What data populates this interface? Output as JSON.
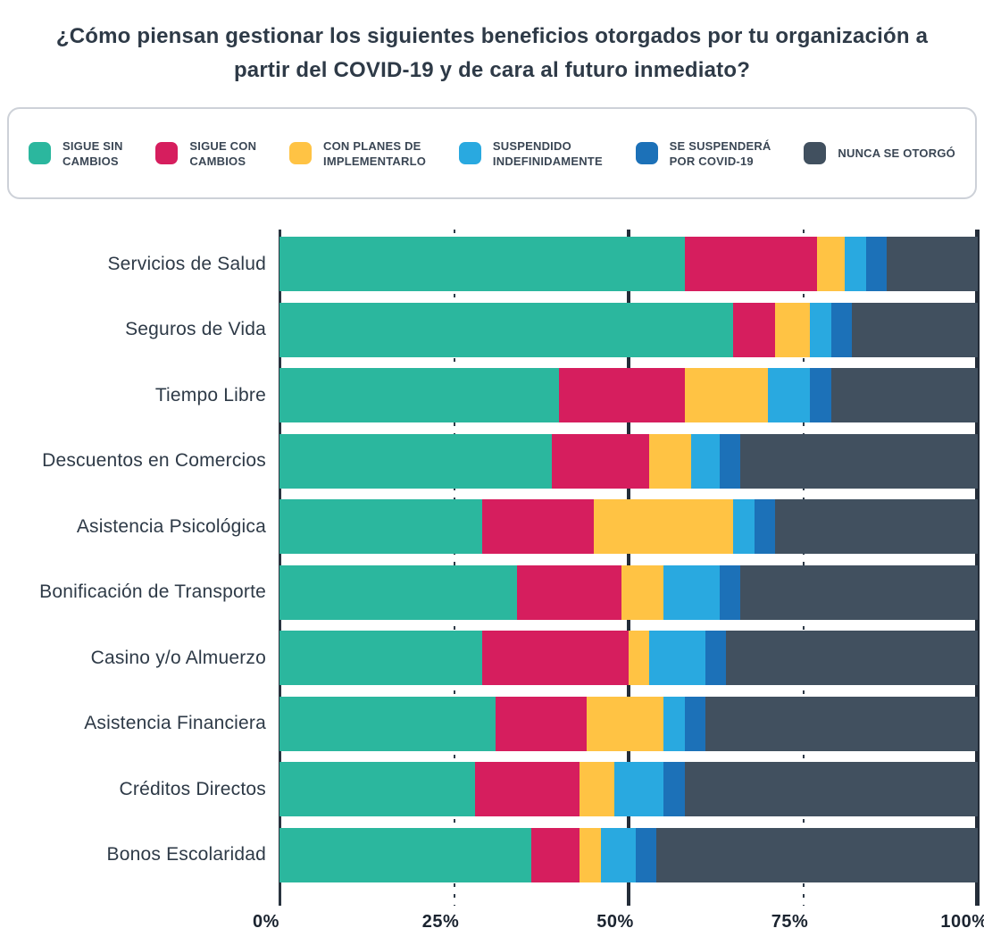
{
  "title": "¿Cómo piensan gestionar los siguientes beneficios otorgados por tu organización a partir del COVID-19 y de cara al futuro inmediato?",
  "colors": {
    "teal": "#2BB79E",
    "pink": "#D61E5E",
    "yellow": "#FFC344",
    "light_blue": "#29A9E0",
    "dark_blue": "#1C71B8",
    "slate": "#41505F",
    "text_dark": "#2E3A47"
  },
  "legend": {
    "items": [
      {
        "label": "SIGUE SIN\nCAMBIOS",
        "color": "#2BB79E"
      },
      {
        "label": "SIGUE CON\nCAMBIOS",
        "color": "#D61E5E"
      },
      {
        "label": "CON PLANES DE\nIMPLEMENTARLO",
        "color": "#FFC344"
      },
      {
        "label": "SUSPENDIDO\nINDEFINIDAMENTE",
        "color": "#29A9E0"
      },
      {
        "label": "SE SUSPENDERÁ\nPOR COVID-19",
        "color": "#1C71B8"
      },
      {
        "label": "NUNCA SE OTORGÓ",
        "color": "#41505F"
      }
    ]
  },
  "chart_data": {
    "type": "bar",
    "stacked": true,
    "orientation": "horizontal",
    "unit": "percent",
    "title": "¿Cómo piensan gestionar los siguientes beneficios otorgados por tu organización a partir del COVID-19 y de cara al futuro inmediato?",
    "categories": [
      "Servicios de Salud",
      "Seguros de Vida",
      "Tiempo Libre",
      "Descuentos en Comercios",
      "Asistencia Psicológica",
      "Bonificación de Transporte",
      "Casino y/o Almuerzo",
      "Asistencia Financiera",
      "Créditos Directos",
      "Bonos Escolaridad"
    ],
    "series": [
      {
        "name": "Sigue sin cambios",
        "color": "#2BB79E",
        "values": [
          58,
          65,
          40,
          39,
          29,
          34,
          29,
          31,
          28,
          36
        ]
      },
      {
        "name": "Sigue con cambios",
        "color": "#D61E5E",
        "values": [
          19,
          6,
          18,
          14,
          16,
          15,
          21,
          13,
          15,
          7
        ]
      },
      {
        "name": "Con planes de implementarlo",
        "color": "#FFC344",
        "values": [
          4,
          5,
          12,
          6,
          20,
          6,
          3,
          11,
          5,
          3
        ]
      },
      {
        "name": "Suspendido indefinidamente",
        "color": "#29A9E0",
        "values": [
          3,
          3,
          6,
          4,
          3,
          8,
          8,
          3,
          7,
          5
        ]
      },
      {
        "name": "Se suspenderá por COVID-19",
        "color": "#1C71B8",
        "values": [
          3,
          3,
          3,
          3,
          3,
          3,
          3,
          3,
          3,
          3
        ]
      },
      {
        "name": "Nunca se otorgó",
        "color": "#41505F",
        "values": [
          13,
          18,
          21,
          34,
          29,
          34,
          36,
          39,
          42,
          46
        ]
      }
    ],
    "x_axis": {
      "ticks": [
        "0%",
        "25%",
        "50%",
        "75%",
        "100%"
      ],
      "range": [
        0,
        100
      ]
    },
    "grid": {
      "solid_lines_at": [
        0,
        50,
        100
      ],
      "dashed_lines_at": [
        25,
        75
      ]
    },
    "legend_position": "top",
    "ylim": [
      0,
      100
    ]
  }
}
